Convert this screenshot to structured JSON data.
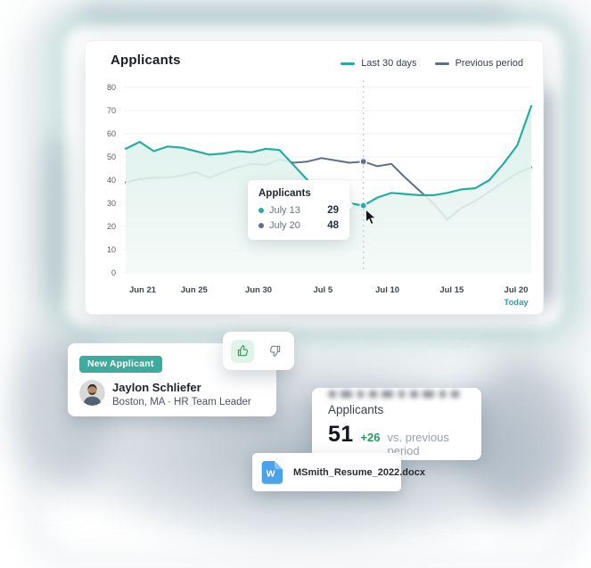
{
  "chart_card": {
    "title": "Applicants",
    "legend": [
      {
        "label": "Last 30 days",
        "color": "#29ACA4"
      },
      {
        "label": "Previous period",
        "color": "#5E7082"
      }
    ],
    "today_label": "Today",
    "today_color": "#2BA49C"
  },
  "chart_data": {
    "type": "line",
    "title": "Applicants",
    "ylim": [
      0,
      80
    ],
    "yticks": [
      0,
      10,
      20,
      30,
      40,
      50,
      60,
      70,
      80
    ],
    "grid": true,
    "legend_position": "top-right",
    "x_ticks": [
      {
        "label": "Jun 21",
        "day": 0
      },
      {
        "label": "Jun 25",
        "day": 4
      },
      {
        "label": "Jun 30",
        "day": 9
      },
      {
        "label": "Jul 5",
        "day": 14
      },
      {
        "label": "Jul 10",
        "day": 19
      },
      {
        "label": "Jul 15",
        "day": 24
      },
      {
        "label": "Jul 20",
        "day": 29
      }
    ],
    "series": [
      {
        "name": "Last 30 days",
        "color": "#29ACA4",
        "values": [
          53.5,
          56.5,
          52.5,
          54.5,
          54,
          52.5,
          51,
          51.5,
          52.5,
          52,
          53.5,
          53,
          46.5,
          40,
          36,
          32.5,
          30,
          29,
          32.5,
          34.5,
          34,
          33.5,
          33.5,
          34.5,
          36,
          36.5,
          40,
          47,
          55,
          72
        ]
      },
      {
        "name": "Previous period",
        "color": "#5E7082",
        "values": [
          39,
          40.5,
          41,
          41,
          42,
          43.5,
          41,
          43.5,
          45.5,
          47,
          46.5,
          49,
          47.5,
          48,
          49.5,
          48.5,
          47.5,
          48,
          46,
          47,
          41,
          35.5,
          30,
          23,
          28,
          31,
          35,
          39,
          43,
          45.5
        ]
      }
    ],
    "marker_index": 17,
    "tooltip": {
      "title": "Applicants",
      "rows": [
        {
          "label": "July 13",
          "value": "29",
          "color": "#29ACA4"
        },
        {
          "label": "July 20",
          "value": "48",
          "color": "#5E7082"
        }
      ]
    }
  },
  "applicant_card": {
    "badge": "New Applicant",
    "badge_color": "#3DAC9E",
    "name": "Jaylon Schliefer",
    "subtitle": "Boston, MA · HR Team Leader"
  },
  "stat_card": {
    "title": "Applicants",
    "value": "51",
    "delta": "+26",
    "delta_color": "#1FA163",
    "comparison": "vs. previous period"
  },
  "file_card": {
    "icon_letter": "W",
    "filename": "MSmith_Resume_2022.docx"
  }
}
